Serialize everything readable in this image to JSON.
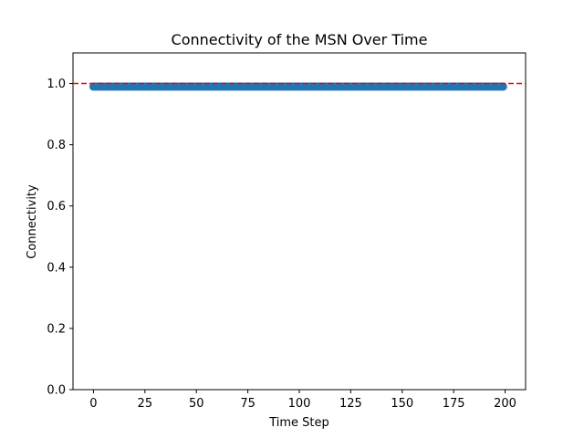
{
  "chart_data": {
    "type": "line",
    "title": "Connectivity of the MSN Over Time",
    "xlabel": "Time Step",
    "ylabel": "Connectivity",
    "xlim": [
      -9.95,
      209.95
    ],
    "ylim": [
      0.0,
      1.1
    ],
    "xticks": [
      0,
      25,
      50,
      75,
      100,
      125,
      150,
      175,
      200
    ],
    "yticks": [
      0.0,
      0.2,
      0.4,
      0.6,
      0.8,
      1.0
    ],
    "ytick_labels": [
      "0.0",
      "0.2",
      "0.4",
      "0.6",
      "0.8",
      "1.0"
    ],
    "grid": false,
    "legend": "none",
    "series": [
      {
        "x_start": 0,
        "x_end": 199,
        "x_step": 1,
        "y_constant": 0.99,
        "marker": "circle",
        "line_style": "solid",
        "color": "#1f77b4"
      }
    ],
    "reference_line": {
      "y": 1.0,
      "color": "#ff0000",
      "style": "dashed"
    }
  }
}
